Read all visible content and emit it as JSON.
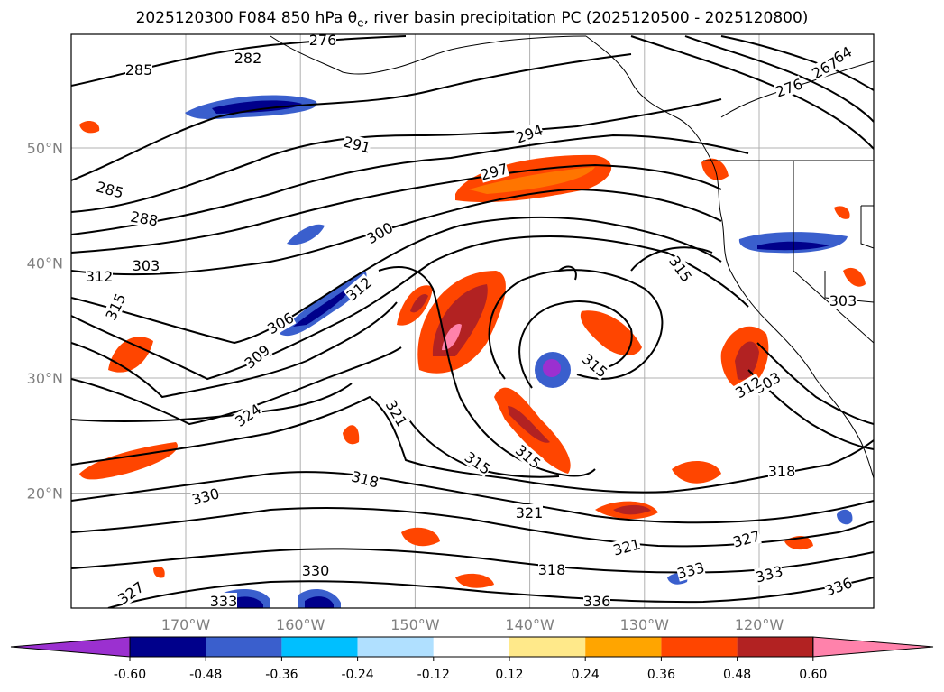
{
  "title": {
    "prefix": "2025120300 F084 850 hPa θ",
    "sub": "e",
    "suffix": ", river basin precipitation PC (2025120500 - 2025120800)"
  },
  "map": {
    "lat_labels": [
      {
        "text": "50°N",
        "lat": 50
      },
      {
        "text": "40°N",
        "lat": 40
      },
      {
        "text": "30°N",
        "lat": 30
      },
      {
        "text": "20°N",
        "lat": 20
      }
    ],
    "lon_labels": [
      {
        "text": "170°W",
        "lon": -170
      },
      {
        "text": "160°W",
        "lon": -160
      },
      {
        "text": "150°W",
        "lon": -150
      },
      {
        "text": "140°W",
        "lon": -140
      },
      {
        "text": "130°W",
        "lon": -130
      },
      {
        "text": "120°W",
        "lon": -120
      }
    ],
    "contour_labels": [
      "285",
      "282",
      "276",
      "264",
      "267",
      "276",
      "291",
      "294",
      "297",
      "285",
      "288",
      "300",
      "312",
      "303",
      "315",
      "306",
      "312",
      "309",
      "315",
      "315",
      "324",
      "321",
      "318",
      "315",
      "315",
      "318",
      "330",
      "321",
      "321",
      "327",
      "330",
      "318",
      "333",
      "333",
      "327",
      "333",
      "336",
      "336",
      "303",
      "312",
      "303"
    ]
  },
  "colorbar": {
    "ticks": [
      "-0.60",
      "-0.48",
      "-0.36",
      "-0.24",
      "-0.12",
      "0.12",
      "0.24",
      "0.36",
      "0.48",
      "0.60"
    ],
    "colors": [
      "#9b30d0",
      "#00008b",
      "#3a5fcd",
      "#00bfff",
      "#b0e0ff",
      "#ffffff",
      "#ffe98a",
      "#ffa500",
      "#ff4500",
      "#b22222",
      "#ff82ab"
    ]
  }
}
